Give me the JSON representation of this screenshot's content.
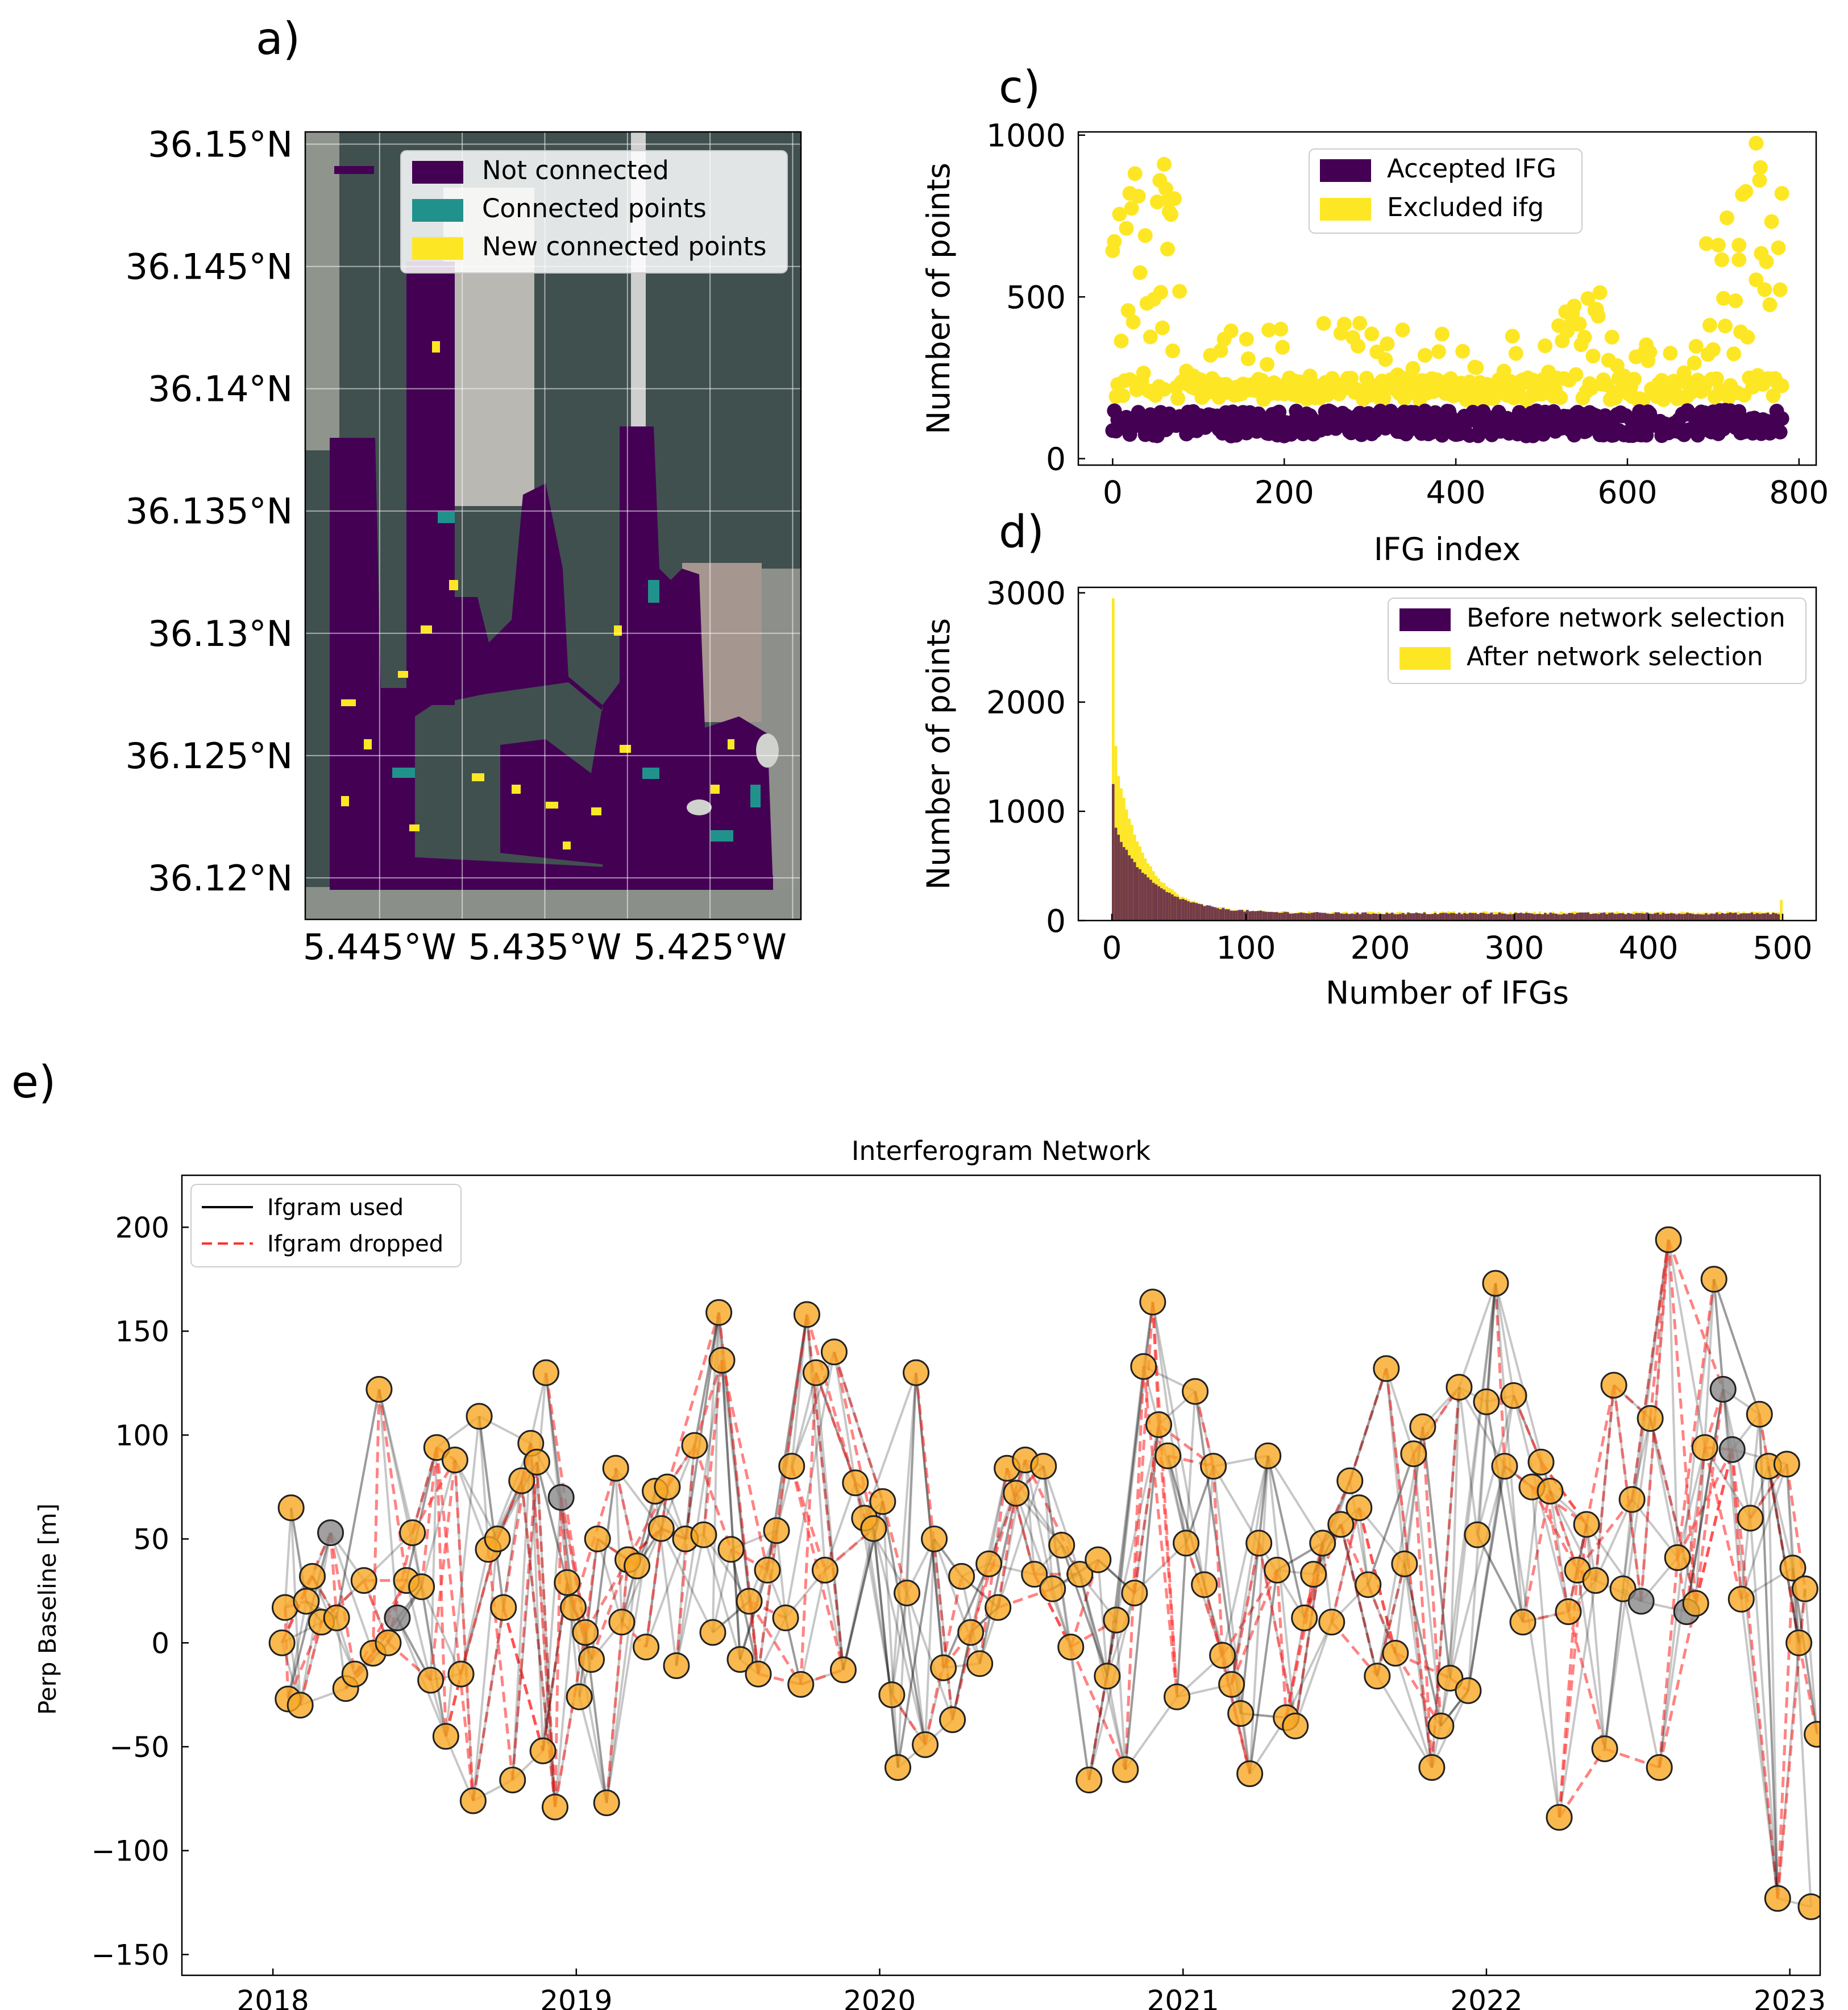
{
  "panels": {
    "a": "a)",
    "c": "c)",
    "d": "d)",
    "e": "e)"
  },
  "colors": {
    "viridis_dark": "#440154",
    "viridis_teal": "#21918c",
    "viridis_yellow": "#fde725",
    "node_orange": "#f7a823",
    "node_grey": "#888888",
    "used": "#000000",
    "dropped": "#ff3030",
    "map_sea": "#3d4a50",
    "map_land": "#7a7f7a"
  },
  "chart_data": [
    {
      "id": "a",
      "type": "scatter",
      "title": "",
      "xlabel": "",
      "ylabel": "",
      "xlim": [
        -5.4495,
        -5.4195
      ],
      "ylim": [
        36.1183,
        36.1505
      ],
      "xticks": [
        -5.445,
        -5.435,
        -5.425
      ],
      "xticklabels": [
        "5.445°W",
        "5.435°W",
        "5.425°W"
      ],
      "yticks": [
        36.12,
        36.125,
        36.13,
        36.135,
        36.14,
        36.145,
        36.15
      ],
      "yticklabels": [
        "36.12°N",
        "36.125°N",
        "36.13°N",
        "36.135°N",
        "36.14°N",
        "36.145°N",
        "36.15°N"
      ],
      "grid": true,
      "legend_position": "top-right",
      "series": [
        {
          "name": "Not connected",
          "color": "#440154"
        },
        {
          "name": "Connected points",
          "color": "#21918c"
        },
        {
          "name": "New connected points",
          "color": "#fde725"
        }
      ]
    },
    {
      "id": "c",
      "type": "scatter",
      "title": "",
      "xlabel": "IFG index",
      "ylabel": "Number of points",
      "xlim": [
        -40,
        820
      ],
      "ylim": [
        -20,
        1010
      ],
      "xticks": [
        0,
        200,
        400,
        600,
        800
      ],
      "yticks": [
        0,
        500,
        1000
      ],
      "legend_position": "top-center",
      "series": [
        {
          "name": "Accepted IFG",
          "color": "#440154",
          "typical_range": [
            50,
            160
          ]
        },
        {
          "name": "Excluded ifg",
          "color": "#fde725",
          "typical_range": [
            160,
            980
          ]
        }
      ]
    },
    {
      "id": "d",
      "type": "bar",
      "title": "",
      "xlabel": "Number of IFGs",
      "ylabel": "Number of points",
      "xlim": [
        -25,
        525
      ],
      "ylim": [
        0,
        3050
      ],
      "xticks": [
        0,
        100,
        200,
        300,
        400,
        500
      ],
      "yticks": [
        0,
        1000,
        2000,
        3000
      ],
      "legend_position": "top-right",
      "series": [
        {
          "name": "Before network selection",
          "color": "#440154",
          "peak": 1250,
          "tail": 60
        },
        {
          "name": "After network selection",
          "color": "#fde725",
          "peak": 2950,
          "tail": 60
        }
      ]
    },
    {
      "id": "e",
      "type": "scatter",
      "title": "Interferogram Network",
      "xlabel": "",
      "ylabel": "Perp Baseline [m]",
      "xlim": [
        2017.7,
        2023.1
      ],
      "ylim": [
        -160,
        225
      ],
      "xticks": [
        2018,
        2019,
        2020,
        2021,
        2022,
        2023
      ],
      "yticks": [
        -150,
        -100,
        -50,
        0,
        50,
        100,
        150,
        200
      ],
      "yticklabels": [
        "−150",
        "−100",
        "−50",
        "0",
        "50",
        "100",
        "150",
        "200"
      ],
      "legend_position": "top-left",
      "series": [
        {
          "name": "Ifgram used",
          "color": "#000000",
          "style": "solid"
        },
        {
          "name": "Ifgram dropped",
          "color": "#ff3030",
          "style": "dashed"
        }
      ],
      "nodes_dated": [
        [
          2018.06,
          65
        ],
        [
          2018.04,
          17
        ],
        [
          2018.03,
          0
        ],
        [
          2018.05,
          -27
        ],
        [
          2018.09,
          -30
        ],
        [
          2018.11,
          20
        ],
        [
          2018.13,
          32
        ],
        [
          2018.16,
          10
        ],
        [
          2018.19,
          53
        ],
        [
          2018.21,
          12
        ],
        [
          2018.24,
          -22
        ],
        [
          2018.27,
          -15
        ],
        [
          2018.3,
          30
        ],
        [
          2018.33,
          -5
        ],
        [
          2018.35,
          122
        ],
        [
          2018.38,
          0
        ],
        [
          2018.41,
          12
        ],
        [
          2018.44,
          30
        ],
        [
          2018.46,
          53
        ],
        [
          2018.49,
          27
        ],
        [
          2018.52,
          -18
        ],
        [
          2018.54,
          94
        ],
        [
          2018.57,
          -45
        ],
        [
          2018.6,
          88
        ],
        [
          2018.62,
          -15
        ],
        [
          2018.66,
          -76
        ],
        [
          2018.68,
          109
        ],
        [
          2018.71,
          45
        ],
        [
          2018.74,
          50
        ],
        [
          2018.76,
          17
        ],
        [
          2018.79,
          -66
        ],
        [
          2018.82,
          78
        ],
        [
          2018.85,
          96
        ],
        [
          2018.87,
          87
        ],
        [
          2018.89,
          -52
        ],
        [
          2018.9,
          130
        ],
        [
          2018.93,
          -79
        ],
        [
          2018.95,
          70
        ],
        [
          2018.97,
          29
        ],
        [
          2018.99,
          17
        ],
        [
          2019.01,
          -26
        ],
        [
          2019.03,
          5
        ],
        [
          2019.05,
          -8
        ],
        [
          2019.07,
          50
        ],
        [
          2019.1,
          -77
        ],
        [
          2019.13,
          84
        ],
        [
          2019.15,
          10
        ],
        [
          2019.17,
          40
        ],
        [
          2019.2,
          37
        ],
        [
          2019.23,
          -2
        ],
        [
          2019.26,
          73
        ],
        [
          2019.28,
          55
        ],
        [
          2019.3,
          75
        ],
        [
          2019.33,
          -11
        ],
        [
          2019.36,
          50
        ],
        [
          2019.39,
          95
        ],
        [
          2019.42,
          52
        ],
        [
          2019.45,
          5
        ],
        [
          2019.47,
          159
        ],
        [
          2019.48,
          136
        ],
        [
          2019.51,
          45
        ],
        [
          2019.54,
          -8
        ],
        [
          2019.57,
          20
        ],
        [
          2019.6,
          -15
        ],
        [
          2019.63,
          35
        ],
        [
          2019.66,
          54
        ],
        [
          2019.69,
          12
        ],
        [
          2019.71,
          85
        ],
        [
          2019.74,
          -20
        ],
        [
          2019.76,
          158
        ],
        [
          2019.79,
          130
        ],
        [
          2019.82,
          35
        ],
        [
          2019.85,
          140
        ],
        [
          2019.88,
          -13
        ],
        [
          2019.92,
          77
        ],
        [
          2019.95,
          60
        ],
        [
          2019.98,
          55
        ],
        [
          2020.01,
          68
        ],
        [
          2020.04,
          -25
        ],
        [
          2020.06,
          -60
        ],
        [
          2020.09,
          24
        ],
        [
          2020.12,
          130
        ],
        [
          2020.15,
          -49
        ],
        [
          2020.18,
          50
        ],
        [
          2020.21,
          -12
        ],
        [
          2020.24,
          -37
        ],
        [
          2020.27,
          32
        ],
        [
          2020.3,
          5
        ],
        [
          2020.33,
          -10
        ],
        [
          2020.36,
          38
        ],
        [
          2020.39,
          17
        ],
        [
          2020.42,
          84
        ],
        [
          2020.45,
          72
        ],
        [
          2020.48,
          88
        ],
        [
          2020.51,
          33
        ],
        [
          2020.54,
          85
        ],
        [
          2020.57,
          26
        ],
        [
          2020.6,
          47
        ],
        [
          2020.63,
          -2
        ],
        [
          2020.66,
          33
        ],
        [
          2020.69,
          -66
        ],
        [
          2020.72,
          40
        ],
        [
          2020.75,
          -16
        ],
        [
          2020.78,
          11
        ],
        [
          2020.81,
          -61
        ],
        [
          2020.84,
          24
        ],
        [
          2020.87,
          133
        ],
        [
          2020.9,
          164
        ],
        [
          2020.92,
          105
        ],
        [
          2020.95,
          90
        ],
        [
          2020.98,
          -26
        ],
        [
          2021.01,
          48
        ],
        [
          2021.04,
          121
        ],
        [
          2021.07,
          28
        ],
        [
          2021.1,
          85
        ],
        [
          2021.13,
          -6
        ],
        [
          2021.16,
          -20
        ],
        [
          2021.19,
          -34
        ],
        [
          2021.22,
          -63
        ],
        [
          2021.25,
          48
        ],
        [
          2021.28,
          90
        ],
        [
          2021.31,
          35
        ],
        [
          2021.34,
          -36
        ],
        [
          2021.37,
          -40
        ],
        [
          2021.4,
          12
        ],
        [
          2021.43,
          33
        ],
        [
          2021.46,
          48
        ],
        [
          2021.49,
          10
        ],
        [
          2021.52,
          57
        ],
        [
          2021.55,
          78
        ],
        [
          2021.58,
          65
        ],
        [
          2021.61,
          28
        ],
        [
          2021.64,
          -16
        ],
        [
          2021.67,
          132
        ],
        [
          2021.7,
          -5
        ],
        [
          2021.73,
          38
        ],
        [
          2021.76,
          91
        ],
        [
          2021.79,
          104
        ],
        [
          2021.82,
          -60
        ],
        [
          2021.85,
          -40
        ],
        [
          2021.88,
          -17
        ],
        [
          2021.91,
          123
        ],
        [
          2021.94,
          -23
        ],
        [
          2021.97,
          52
        ],
        [
          2022.0,
          116
        ],
        [
          2022.03,
          173
        ],
        [
          2022.06,
          85
        ],
        [
          2022.09,
          119
        ],
        [
          2022.12,
          10
        ],
        [
          2022.15,
          75
        ],
        [
          2022.18,
          87
        ],
        [
          2022.21,
          73
        ],
        [
          2022.24,
          -84
        ],
        [
          2022.27,
          15
        ],
        [
          2022.3,
          35
        ],
        [
          2022.33,
          57
        ],
        [
          2022.36,
          30
        ],
        [
          2022.39,
          -51
        ],
        [
          2022.42,
          124
        ],
        [
          2022.45,
          26
        ],
        [
          2022.48,
          69
        ],
        [
          2022.51,
          20
        ],
        [
          2022.54,
          108
        ],
        [
          2022.57,
          -60
        ],
        [
          2022.6,
          194
        ],
        [
          2022.63,
          41
        ],
        [
          2022.66,
          15
        ],
        [
          2022.69,
          19
        ],
        [
          2022.72,
          94
        ],
        [
          2022.75,
          175
        ],
        [
          2022.78,
          122
        ],
        [
          2022.81,
          93
        ],
        [
          2022.84,
          21
        ],
        [
          2022.87,
          60
        ],
        [
          2022.9,
          110
        ],
        [
          2022.93,
          85
        ],
        [
          2022.96,
          -123
        ],
        [
          2022.99,
          86
        ],
        [
          2023.01,
          36
        ],
        [
          2023.03,
          0
        ],
        [
          2023.05,
          26
        ],
        [
          2023.07,
          -127
        ],
        [
          2023.09,
          -44
        ]
      ]
    }
  ]
}
